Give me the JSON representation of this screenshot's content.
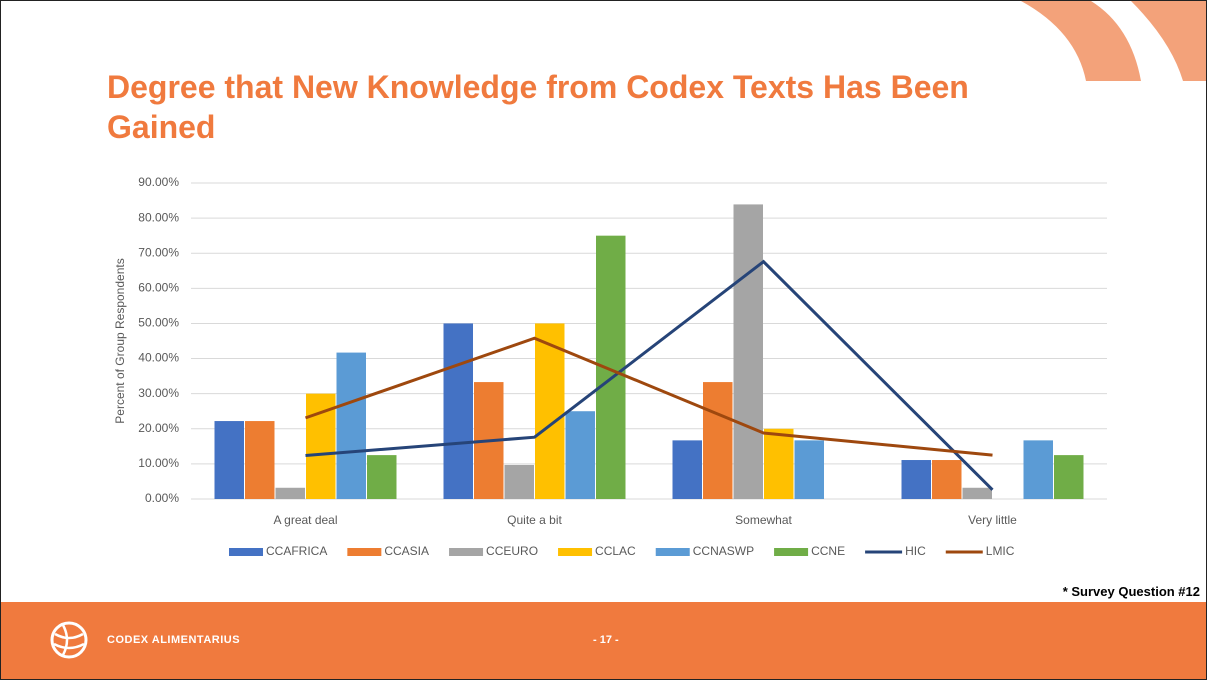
{
  "chart_data": {
    "type": "bar",
    "title": "Degree that New Knowledge from Codex Texts Has Been Gained",
    "y_label": "Percent of Group Respondents",
    "categories": [
      "A great deal",
      "Quite a bit",
      "Somewhat",
      "Very little"
    ],
    "series": [
      {
        "name": "CCAFRICA",
        "color": "#4472c4",
        "values": [
          22.2,
          50,
          16.7,
          11.1
        ]
      },
      {
        "name": "CCASIA",
        "color": "#ed7d31",
        "values": [
          22.2,
          33.3,
          33.3,
          11.1
        ]
      },
      {
        "name": "CCEURO",
        "color": "#a5a5a5",
        "values": [
          3.2,
          9.7,
          83.9,
          3.2
        ]
      },
      {
        "name": "CCLAC",
        "color": "#ffc000",
        "values": [
          30,
          50,
          20,
          0
        ]
      },
      {
        "name": "CCNASWP",
        "color": "#5b9bd5",
        "values": [
          41.7,
          25,
          16.7,
          16.7
        ]
      },
      {
        "name": "CCNE",
        "color": "#70ad47",
        "values": [
          12.5,
          75,
          0,
          12.5
        ]
      },
      {
        "name": "HIC",
        "color": "#264478",
        "type": "line",
        "values": [
          12.4,
          17.6,
          67.6,
          2.6
        ]
      },
      {
        "name": "LMIC",
        "color": "#9e480e",
        "type": "line",
        "values": [
          23.1,
          45.8,
          18.8,
          12.5
        ]
      }
    ],
    "ylim": [
      0,
      90
    ],
    "yticks": [
      {
        "value": 0,
        "label": "0.00%"
      },
      {
        "value": 10,
        "label": "10.00%"
      },
      {
        "value": 20,
        "label": "20.00%"
      },
      {
        "value": 30,
        "label": "30.00%"
      },
      {
        "value": 40,
        "label": "40.00%"
      },
      {
        "value": 50,
        "label": "50.00%"
      },
      {
        "value": 60,
        "label": "60.00%"
      },
      {
        "value": 70,
        "label": "70.00%"
      },
      {
        "value": 80,
        "label": "80.00%"
      },
      {
        "value": 90,
        "label": "90.00%"
      }
    ],
    "grid": true,
    "legend": "bottom"
  },
  "slide": {
    "note": "* Survey Question #12",
    "brand": "CODEX ALIMENTARIUS",
    "page": "- 17 -"
  }
}
